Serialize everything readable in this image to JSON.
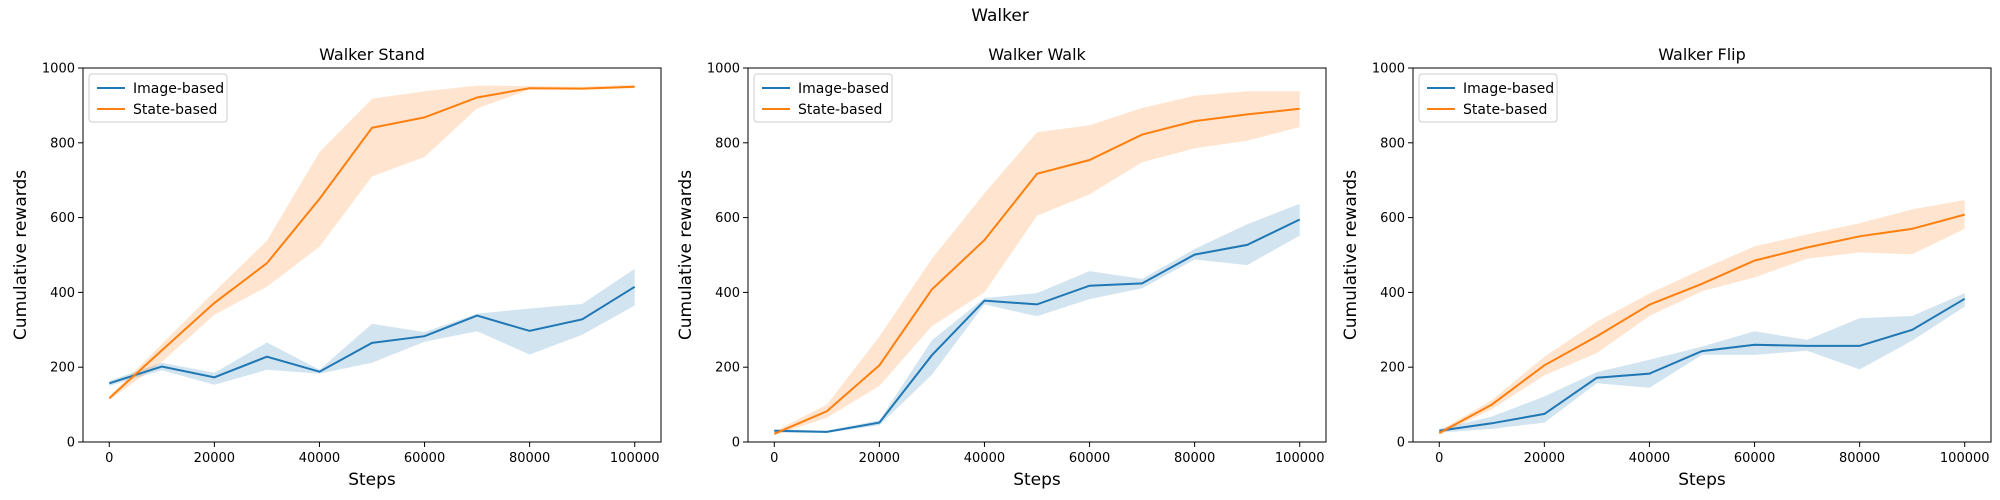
{
  "figure": {
    "suptitle": "Walker"
  },
  "colors": {
    "image_based": "#1f77b4",
    "state_based": "#ff7f0e"
  },
  "chart_data": [
    {
      "type": "line",
      "title": "Walker Stand",
      "xlabel": "Steps",
      "ylabel": "Cumulative rewards",
      "xlim": [
        -5000,
        105000
      ],
      "ylim": [
        0,
        1000
      ],
      "xticks": [
        0,
        20000,
        40000,
        60000,
        80000,
        100000
      ],
      "yticks": [
        0,
        200,
        400,
        600,
        800,
        1000
      ],
      "legend": "top-left",
      "grid": false,
      "x": [
        0,
        10000,
        20000,
        30000,
        40000,
        50000,
        60000,
        70000,
        80000,
        90000,
        100000
      ],
      "series": [
        {
          "name": "Image-based",
          "color": "#1f77b4",
          "values": [
            157,
            202,
            173,
            228,
            188,
            265,
            283,
            338,
            297,
            328,
            415
          ],
          "lower": [
            150,
            192,
            153,
            193,
            183,
            212,
            268,
            296,
            234,
            287,
            365
          ],
          "upper": [
            164,
            212,
            185,
            266,
            193,
            316,
            294,
            343,
            357,
            369,
            463
          ]
        },
        {
          "name": "State-based",
          "color": "#ff7f0e",
          "values": [
            117,
            245,
            372,
            478,
            650,
            840,
            868,
            921,
            946,
            945,
            950
          ],
          "lower": [
            112,
            214,
            340,
            415,
            522,
            710,
            762,
            892,
            942,
            942,
            946
          ],
          "upper": [
            122,
            262,
            402,
            538,
            775,
            918,
            938,
            953,
            952,
            950,
            955
          ]
        }
      ]
    },
    {
      "type": "line",
      "title": "Walker Walk",
      "xlabel": "Steps",
      "ylabel": "Cumulative rewards",
      "xlim": [
        -5000,
        105000
      ],
      "ylim": [
        0,
        1000
      ],
      "xticks": [
        0,
        20000,
        40000,
        60000,
        80000,
        100000
      ],
      "yticks": [
        0,
        200,
        400,
        600,
        800,
        1000
      ],
      "legend": "top-left",
      "grid": false,
      "x": [
        0,
        10000,
        20000,
        30000,
        40000,
        50000,
        60000,
        70000,
        80000,
        90000,
        100000
      ],
      "series": [
        {
          "name": "Image-based",
          "color": "#1f77b4",
          "values": [
            30,
            27,
            52,
            232,
            378,
            368,
            418,
            424,
            501,
            527,
            595
          ],
          "lower": [
            25,
            24,
            45,
            180,
            368,
            336,
            382,
            411,
            488,
            473,
            552
          ],
          "upper": [
            34,
            30,
            58,
            272,
            385,
            398,
            457,
            436,
            516,
            582,
            637
          ]
        },
        {
          "name": "State-based",
          "color": "#ff7f0e",
          "values": [
            22,
            82,
            205,
            408,
            540,
            717,
            754,
            822,
            858,
            876,
            891
          ],
          "lower": [
            18,
            65,
            150,
            310,
            400,
            605,
            662,
            748,
            785,
            806,
            842
          ],
          "upper": [
            28,
            100,
            282,
            490,
            665,
            828,
            847,
            893,
            926,
            938,
            938
          ]
        }
      ]
    },
    {
      "type": "line",
      "title": "Walker Flip",
      "xlabel": "Steps",
      "ylabel": "Cumulative rewards",
      "xlim": [
        -5000,
        105000
      ],
      "ylim": [
        0,
        1000
      ],
      "xticks": [
        0,
        20000,
        40000,
        60000,
        80000,
        100000
      ],
      "yticks": [
        0,
        200,
        400,
        600,
        800,
        1000
      ],
      "legend": "top-left",
      "grid": false,
      "x": [
        0,
        10000,
        20000,
        30000,
        40000,
        50000,
        60000,
        70000,
        80000,
        90000,
        100000
      ],
      "series": [
        {
          "name": "Image-based",
          "color": "#1f77b4",
          "values": [
            30,
            50,
            75,
            172,
            183,
            243,
            260,
            257,
            257,
            300,
            383
          ],
          "lower": [
            25,
            35,
            52,
            157,
            145,
            233,
            233,
            244,
            194,
            271,
            362
          ],
          "upper": [
            35,
            68,
            122,
            187,
            220,
            255,
            296,
            273,
            331,
            337,
            398
          ]
        },
        {
          "name": "State-based",
          "color": "#ff7f0e",
          "values": [
            24,
            100,
            205,
            283,
            367,
            423,
            485,
            520,
            550,
            570,
            608
          ],
          "lower": [
            18,
            88,
            178,
            238,
            337,
            403,
            440,
            490,
            507,
            502,
            570
          ],
          "upper": [
            30,
            112,
            228,
            322,
            397,
            462,
            523,
            555,
            585,
            622,
            647
          ]
        }
      ]
    }
  ]
}
